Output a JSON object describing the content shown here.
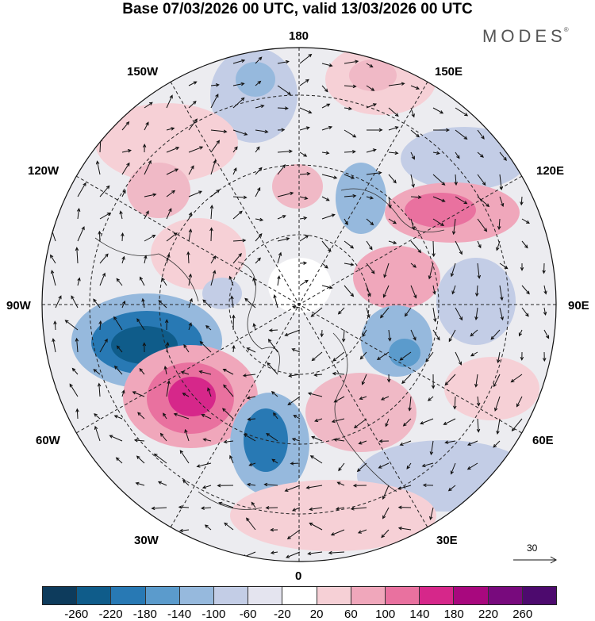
{
  "title": "Base 07/03/2026 00 UTC, valid 13/03/2026 00 UTC",
  "logo": "MODES",
  "logo_mark": "®",
  "map": {
    "projection": "polar-stereographic-north",
    "longitude_labels": {
      "top": "180",
      "upper_left": "150W",
      "upper_right": "150E",
      "mid_upper_left": "120W",
      "mid_upper_right": "120E",
      "left": "90W",
      "right": "90E",
      "mid_lower_left": "60W",
      "mid_lower_right": "60E",
      "lower_left": "30W",
      "lower_right": "30E",
      "bottom": "0"
    },
    "reference_vector": "30"
  },
  "colorbar": {
    "ticks": [
      "-260",
      "-220",
      "-180",
      "-140",
      "-100",
      "-60",
      "-20",
      "20",
      "60",
      "100",
      "140",
      "180",
      "220",
      "260"
    ],
    "colors": [
      "#0d3b5c",
      "#0f5c8a",
      "#2879b4",
      "#5b9bcc",
      "#96b9dd",
      "#c3cde6",
      "#e4e4ef",
      "#ffffff",
      "#f6d0d6",
      "#f0a7bb",
      "#e9719f",
      "#d6278a",
      "#a8087e",
      "#780a7d",
      "#4d0a6e"
    ]
  }
}
